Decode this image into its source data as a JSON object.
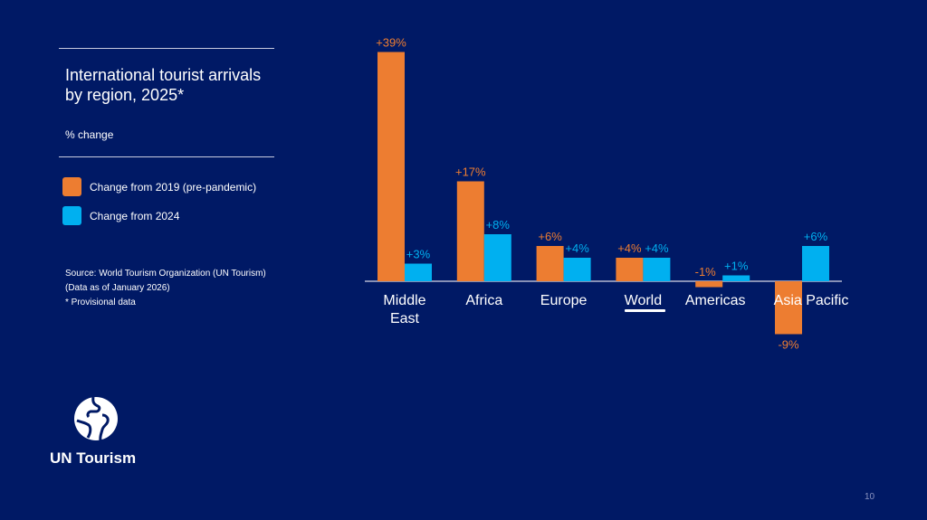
{
  "panel": {
    "title_line1": "International tourist arrivals",
    "title_line2": "by region, 2025*",
    "subtitle": "% change",
    "legend": [
      {
        "label": "Change from 2019 (pre-pandemic)",
        "color": "#ED7D31"
      },
      {
        "label": "Change from 2024",
        "color": "#00B0F0"
      }
    ],
    "source_line1": "Source: World Tourism Organization (UN Tourism)",
    "source_line2": "(Data as of January 2026)",
    "source_line3": "* Provisional data"
  },
  "brand": {
    "name": "UN Tourism",
    "logo_icon": "un-tourism-globe-icon"
  },
  "page_number": "10",
  "chart_data": {
    "type": "bar",
    "title": "International tourist arrivals by region, 2025*",
    "ylabel": "% change",
    "xlabel": "",
    "categories": [
      "Middle East",
      "Africa",
      "Europe",
      "World",
      "Americas",
      "Asia Pacific"
    ],
    "category_lines": [
      [
        "Middle",
        "East"
      ],
      [
        "Africa"
      ],
      [
        "Europe"
      ],
      [
        "World"
      ],
      [
        "Americas"
      ],
      [
        "Asia Pacific"
      ]
    ],
    "highlighted_category": "World",
    "series": [
      {
        "name": "Change from 2019 (pre-pandemic)",
        "color": "#ED7D31",
        "values": [
          39,
          17,
          6,
          4,
          -1,
          -9
        ],
        "labels": [
          "+39%",
          "+17%",
          "+6%",
          "+4%",
          "-1%",
          "-9%"
        ]
      },
      {
        "name": "Change from 2024",
        "color": "#00B0F0",
        "values": [
          3,
          8,
          4,
          4,
          1,
          6
        ],
        "labels": [
          "+3%",
          "+8%",
          "+4%",
          "+4%",
          "+1%",
          "+6%"
        ]
      }
    ],
    "ylim": [
      -9,
      39
    ],
    "grid": false,
    "legend_position": "left-panel"
  }
}
